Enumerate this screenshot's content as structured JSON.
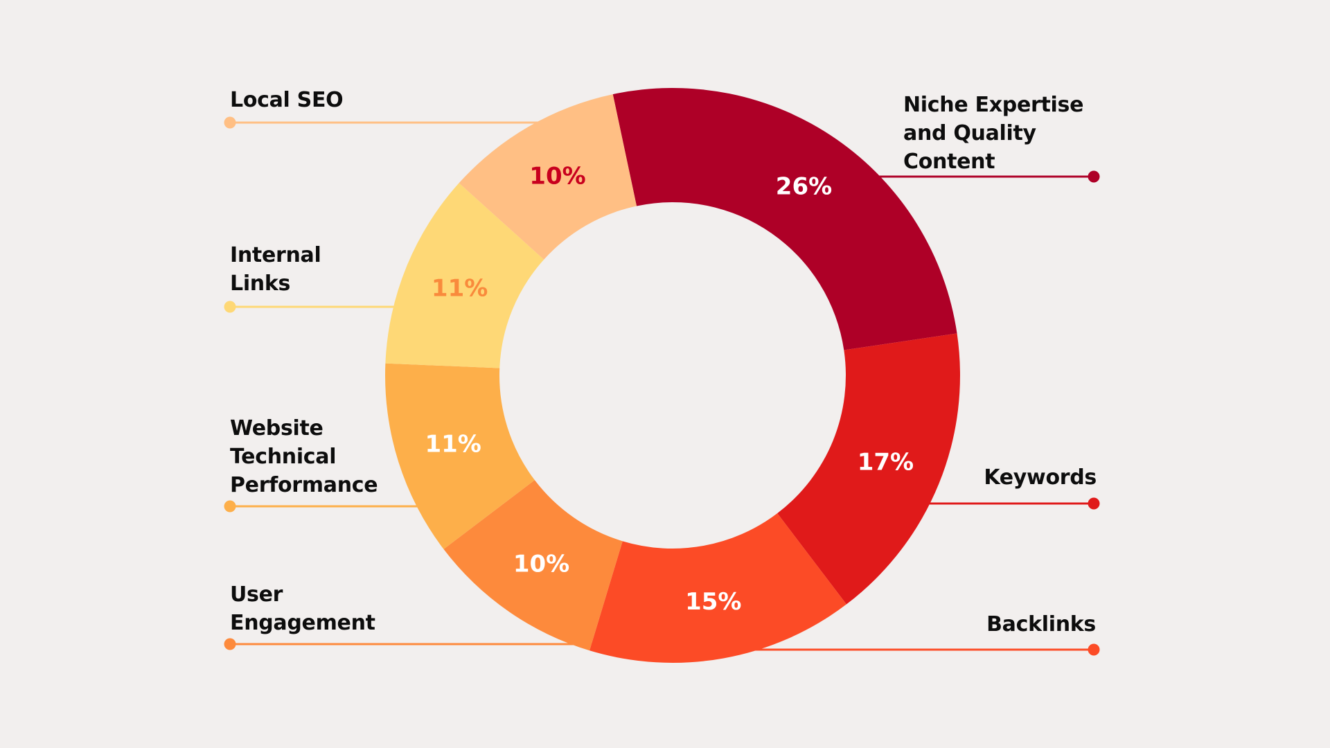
{
  "chart_data": {
    "type": "pie",
    "variant": "donut",
    "title": "",
    "start_angle_deg": -12,
    "background": "#F2EFEE",
    "slices": [
      {
        "name": "Niche Expertise and Quality Content",
        "label_lines": [
          "Niche Expertise",
          "and Quality",
          "Content"
        ],
        "value": 26,
        "value_label": "26%",
        "color": "#AE0027",
        "value_label_color": "#FFFFFF",
        "legend_side": "right"
      },
      {
        "name": "Keywords",
        "label_lines": [
          "Keywords"
        ],
        "value": 17,
        "value_label": "17%",
        "color": "#E01A1A",
        "value_label_color": "#FFFFFF",
        "legend_side": "right"
      },
      {
        "name": "Backlinks",
        "label_lines": [
          "Backlinks"
        ],
        "value": 15,
        "value_label": "15%",
        "color": "#FC4B26",
        "value_label_color": "#FFFFFF",
        "legend_side": "right"
      },
      {
        "name": "User Engagement",
        "label_lines": [
          "User",
          "Engagement"
        ],
        "value": 10,
        "value_label": "10%",
        "color": "#FD8A3C",
        "value_label_color": "#FFFFFF",
        "legend_side": "left"
      },
      {
        "name": "Website Technical Performance",
        "label_lines": [
          "Website",
          "Technical",
          "Performance"
        ],
        "value": 11,
        "value_label": "11%",
        "color": "#FDAF4A",
        "value_label_color": "#FFFFFF",
        "legend_side": "left"
      },
      {
        "name": "Internal Links",
        "label_lines": [
          "Internal",
          "Links"
        ],
        "value": 11,
        "value_label": "11%",
        "color": "#FED876",
        "value_label_color": "#F98A3C",
        "legend_side": "left"
      },
      {
        "name": "Local SEO",
        "label_lines": [
          "Local SEO"
        ],
        "value": 10,
        "value_label": "10%",
        "color": "#FFBF84",
        "value_label_color": "#C8001E",
        "legend_side": "left"
      }
    ]
  }
}
